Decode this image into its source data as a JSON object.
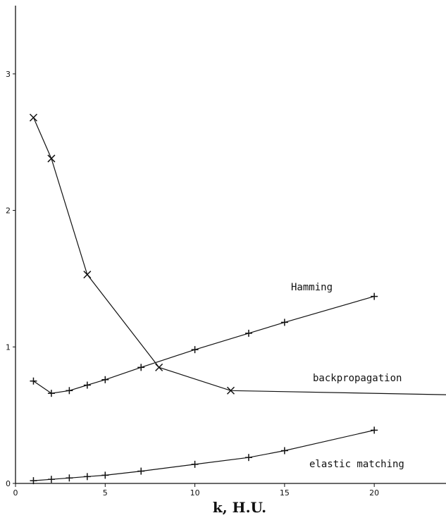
{
  "chart_data": {
    "type": "line",
    "xlabel": "k, H.U.",
    "ylabel": "",
    "xlim": [
      0,
      24
    ],
    "ylim": [
      0,
      3.5
    ],
    "grid": false,
    "x_ticks": [
      0,
      5,
      10,
      15,
      20
    ],
    "y_ticks": [
      0,
      1,
      2,
      3
    ],
    "series": [
      {
        "name": "Hamming",
        "marker": "x",
        "color": "#111111",
        "x": [
          1,
          2,
          4,
          8,
          12,
          24
        ],
        "y": [
          2.68,
          2.38,
          1.53,
          0.85,
          0.68,
          0.65
        ]
      },
      {
        "name": "backpropagation",
        "marker": "+",
        "color": "#111111",
        "x": [
          1,
          2,
          3,
          4,
          5,
          7,
          10,
          13,
          15,
          20
        ],
        "y": [
          0.75,
          0.66,
          0.68,
          0.72,
          0.76,
          0.85,
          0.98,
          1.1,
          1.18,
          1.37
        ]
      },
      {
        "name": "elastic matching",
        "marker": "+",
        "color": "#111111",
        "x": [
          1,
          2,
          3,
          4,
          5,
          7,
          10,
          13,
          15,
          20
        ],
        "y": [
          0.02,
          0.03,
          0.04,
          0.05,
          0.06,
          0.09,
          0.14,
          0.19,
          0.24,
          0.39
        ]
      }
    ]
  }
}
